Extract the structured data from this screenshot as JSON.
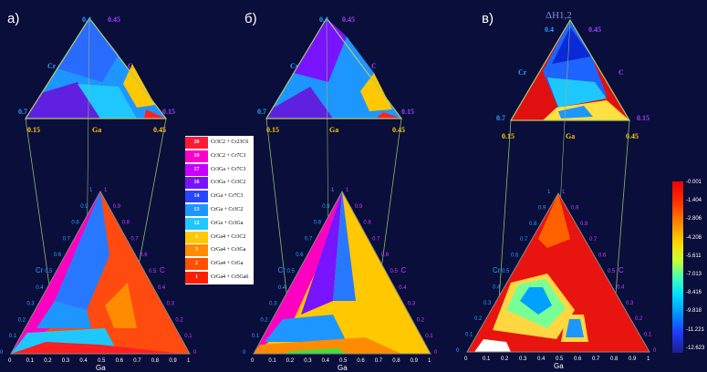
{
  "panels": [
    {
      "letter": "а)"
    },
    {
      "letter": "б)"
    },
    {
      "letter": "в)",
      "title": "ΔH1,2"
    }
  ],
  "zoom_labels": {
    "top": "0.4",
    "top_right": "0.45",
    "left_elem": "Cr",
    "right_elem": "C",
    "left_bottom": "0.7",
    "right_bottom": "0.15",
    "base_left": "0.15",
    "base_mid": "Ga",
    "base_right": "0.45"
  },
  "full_axes": {
    "bottom_label": "Ga",
    "left_label": "Cr",
    "right_label": "C",
    "ticks": [
      "0",
      "0.1",
      "0.2",
      "0.3",
      "0.4",
      "0.5",
      "0.6",
      "0.7",
      "0.8",
      "0.9",
      "1"
    ]
  },
  "legend": [
    {
      "num": "20",
      "text": "Cr3C2 + Cr23C6",
      "color": "#ff1a33"
    },
    {
      "num": "19",
      "text": "Cr3C2 + Cr7C3",
      "color": "#ff00c8"
    },
    {
      "num": "17",
      "text": "Cr3Ga + Cr7C3",
      "color": "#c800ff"
    },
    {
      "num": "16",
      "text": "Cr3Ga + Cr3C2",
      "color": "#7814ff"
    },
    {
      "num": "14",
      "text": "CrGa + Cr7C3",
      "color": "#2846ff"
    },
    {
      "num": "13",
      "text": "CrGa + Cr3C2",
      "color": "#1e96ff"
    },
    {
      "num": "12",
      "text": "CrGa + Cr3Ga",
      "color": "#1ec8ff"
    },
    {
      "num": "4",
      "text": "CrGa4 + Cr3C2",
      "color": "#ffc800"
    },
    {
      "num": "3",
      "text": "CrGa4 + Cr3Ga",
      "color": "#ff8c00"
    },
    {
      "num": "2",
      "text": "CrGa4 + CrGa",
      "color": "#ff5000"
    },
    {
      "num": "1",
      "text": "CrGa4 + Cr5Ga6",
      "color": "#ff1e00"
    }
  ],
  "colorbar": {
    "labels": [
      "-0.001",
      "-1.404",
      "-2.806",
      "-4.208",
      "-5.611",
      "-7.013",
      "-8.416",
      "-9.818",
      "-11.221",
      "-12.623"
    ]
  }
}
